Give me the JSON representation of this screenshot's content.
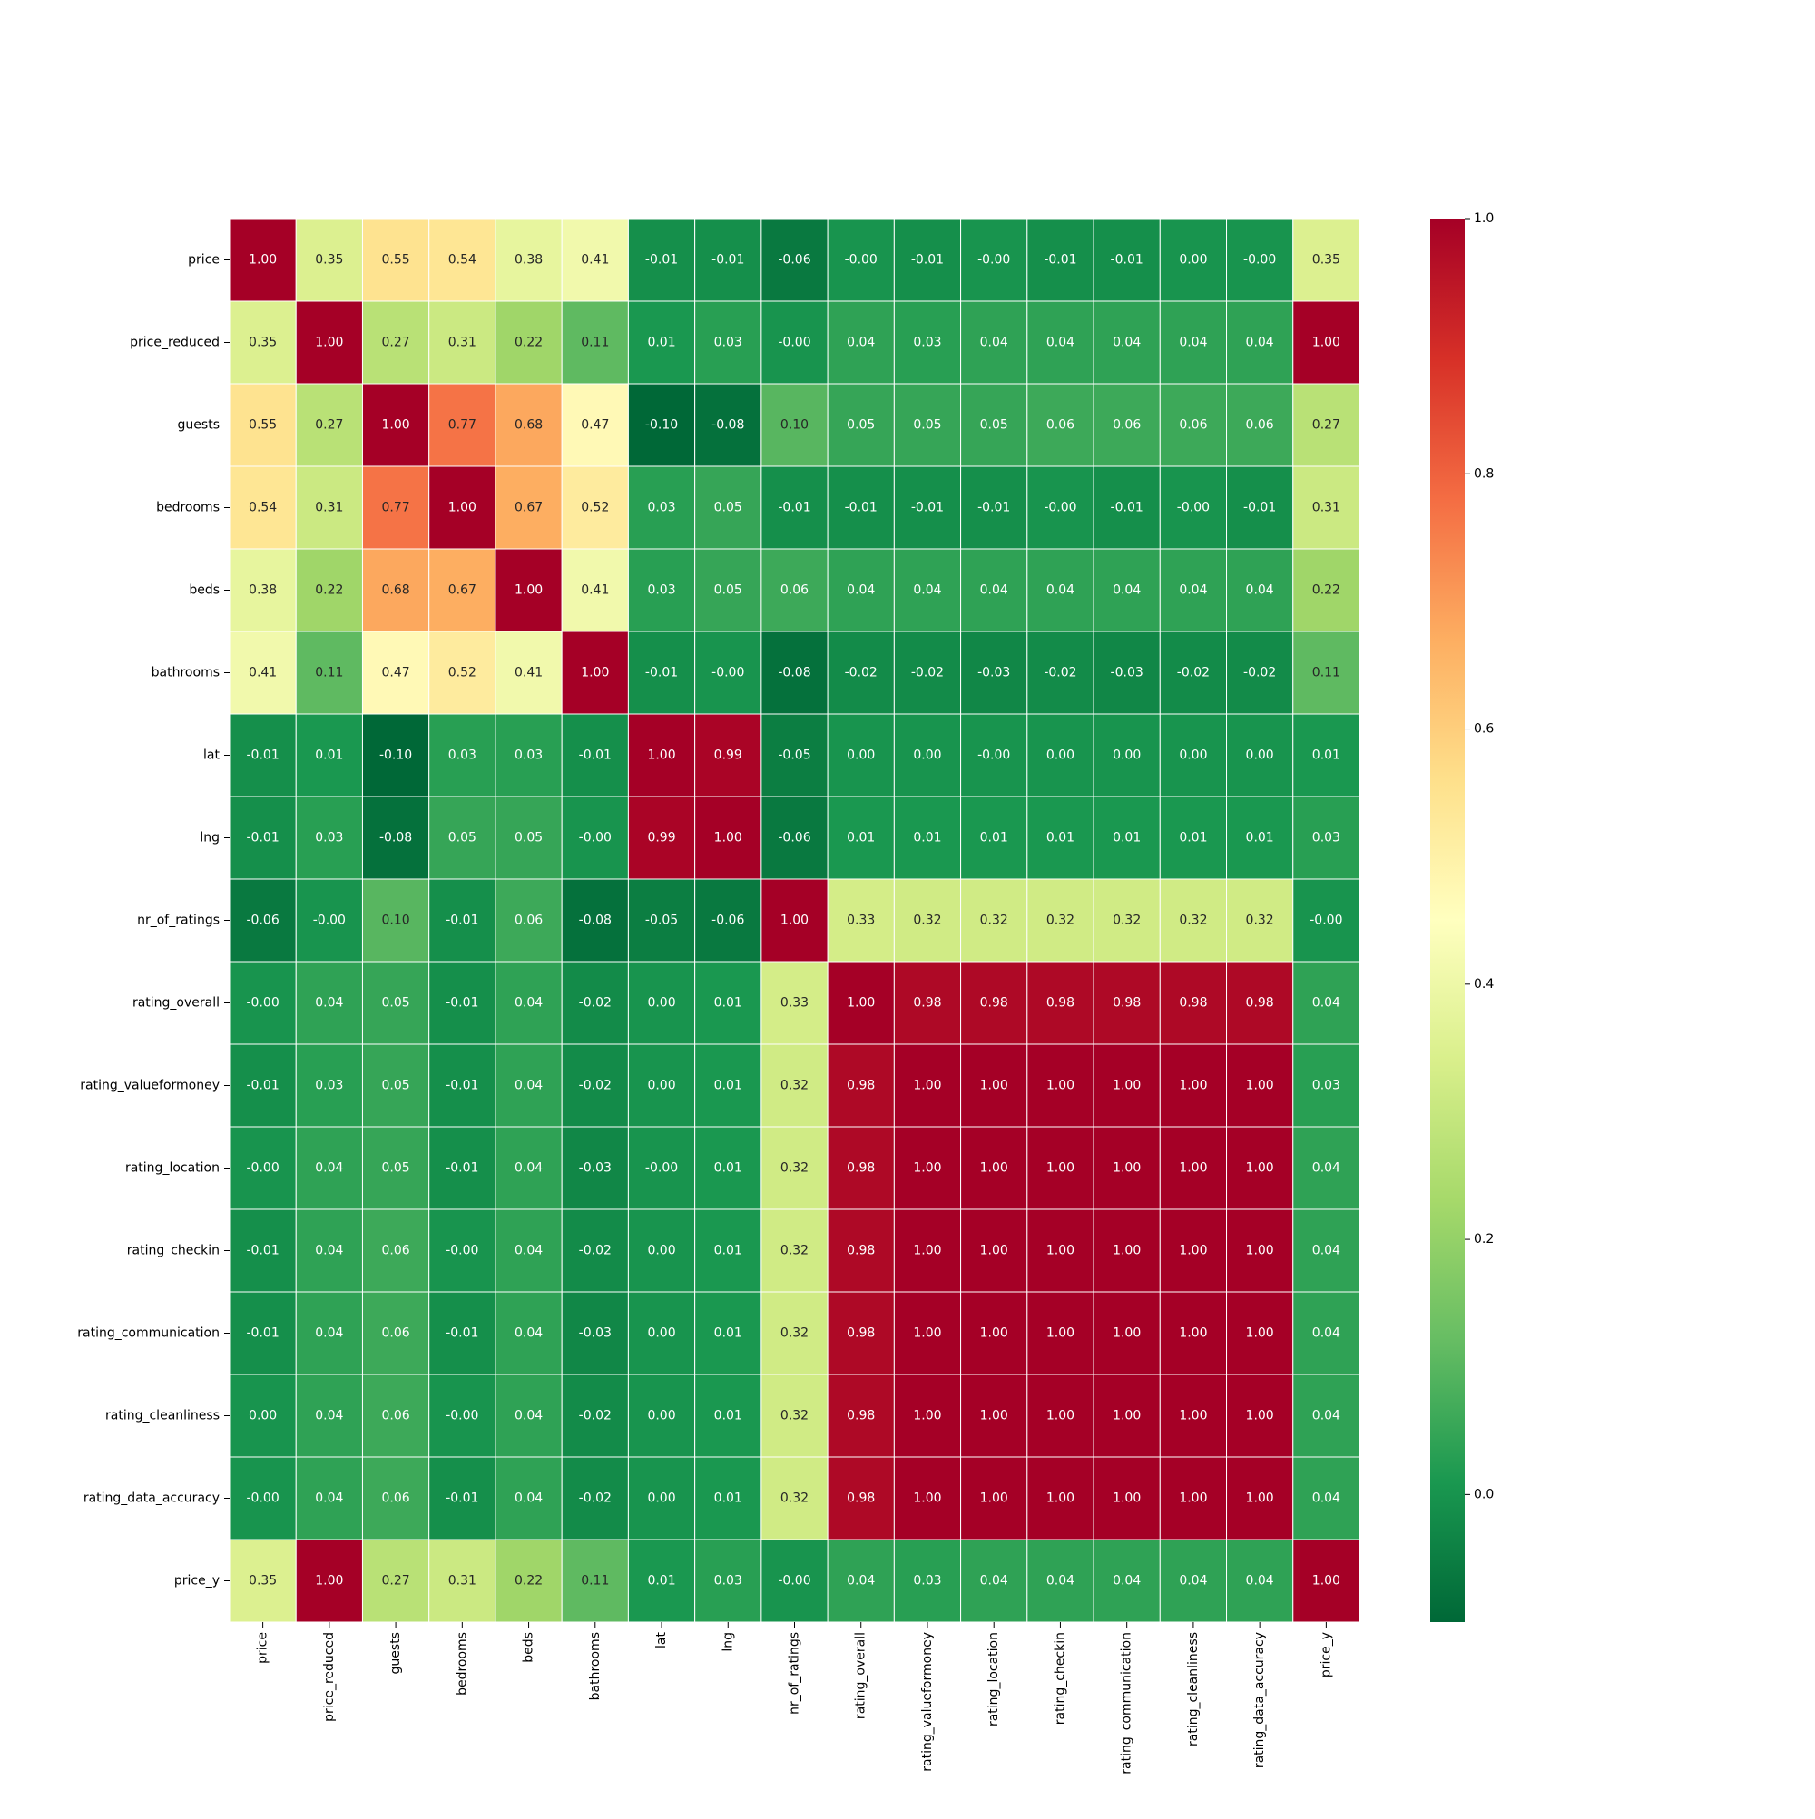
{
  "chart_data": {
    "type": "heatmap",
    "title": "",
    "xlabel": "",
    "ylabel": "",
    "variables": [
      "price",
      "price_reduced",
      "guests",
      "bedrooms",
      "beds",
      "bathrooms",
      "lat",
      "lng",
      "nr_of_ratings",
      "rating_overall",
      "rating_valueformoney",
      "rating_location",
      "rating_checkin",
      "rating_communication",
      "rating_cleanliness",
      "rating_data_accuracy",
      "price_y"
    ],
    "annotation_format": "2 decimals",
    "colormap": "RdYlGn_r",
    "colormap_stops": [
      "#006837",
      "#1a9850",
      "#66bd63",
      "#a6d96a",
      "#d9ef8b",
      "#ffffbf",
      "#fee08b",
      "#fdae61",
      "#f46d43",
      "#d73027",
      "#a50026"
    ],
    "vmin": -0.1,
    "vmax": 1.0,
    "colorbar_ticks": [
      0.0,
      0.2,
      0.4,
      0.6,
      0.8,
      1.0
    ],
    "colorbar_tick_labels": [
      "0.0",
      "0.2",
      "0.4",
      "0.6",
      "0.8",
      "1.0"
    ],
    "matrix": [
      [
        1.0,
        0.35,
        0.55,
        0.54,
        0.38,
        0.41,
        -0.01,
        -0.01,
        -0.06,
        -0.0,
        -0.01,
        -0.0,
        -0.01,
        -0.01,
        0.0,
        -0.0,
        0.35
      ],
      [
        0.35,
        1.0,
        0.27,
        0.31,
        0.22,
        0.11,
        0.01,
        0.03,
        -0.0,
        0.04,
        0.03,
        0.04,
        0.04,
        0.04,
        0.04,
        0.04,
        1.0
      ],
      [
        0.55,
        0.27,
        1.0,
        0.77,
        0.68,
        0.47,
        -0.1,
        -0.08,
        0.1,
        0.05,
        0.05,
        0.05,
        0.06,
        0.06,
        0.06,
        0.06,
        0.27
      ],
      [
        0.54,
        0.31,
        0.77,
        1.0,
        0.67,
        0.52,
        0.03,
        0.05,
        -0.01,
        -0.01,
        -0.01,
        -0.01,
        -0.0,
        -0.01,
        -0.0,
        -0.01,
        0.31
      ],
      [
        0.38,
        0.22,
        0.68,
        0.67,
        1.0,
        0.41,
        0.03,
        0.05,
        0.06,
        0.04,
        0.04,
        0.04,
        0.04,
        0.04,
        0.04,
        0.04,
        0.22
      ],
      [
        0.41,
        0.11,
        0.47,
        0.52,
        0.41,
        1.0,
        -0.01,
        -0.0,
        -0.08,
        -0.02,
        -0.02,
        -0.03,
        -0.02,
        -0.03,
        -0.02,
        -0.02,
        0.11
      ],
      [
        -0.01,
        0.01,
        -0.1,
        0.03,
        0.03,
        -0.01,
        1.0,
        0.99,
        -0.05,
        0.0,
        0.0,
        -0.0,
        0.0,
        0.0,
        0.0,
        0.0,
        0.01
      ],
      [
        -0.01,
        0.03,
        -0.08,
        0.05,
        0.05,
        -0.0,
        0.99,
        1.0,
        -0.06,
        0.01,
        0.01,
        0.01,
        0.01,
        0.01,
        0.01,
        0.01,
        0.03
      ],
      [
        -0.06,
        -0.0,
        0.1,
        -0.01,
        0.06,
        -0.08,
        -0.05,
        -0.06,
        1.0,
        0.33,
        0.32,
        0.32,
        0.32,
        0.32,
        0.32,
        0.32,
        -0.0
      ],
      [
        -0.0,
        0.04,
        0.05,
        -0.01,
        0.04,
        -0.02,
        0.0,
        0.01,
        0.33,
        1.0,
        0.98,
        0.98,
        0.98,
        0.98,
        0.98,
        0.98,
        0.04
      ],
      [
        -0.01,
        0.03,
        0.05,
        -0.01,
        0.04,
        -0.02,
        0.0,
        0.01,
        0.32,
        0.98,
        1.0,
        1.0,
        1.0,
        1.0,
        1.0,
        1.0,
        0.03
      ],
      [
        -0.0,
        0.04,
        0.05,
        -0.01,
        0.04,
        -0.03,
        -0.0,
        0.01,
        0.32,
        0.98,
        1.0,
        1.0,
        1.0,
        1.0,
        1.0,
        1.0,
        0.04
      ],
      [
        -0.01,
        0.04,
        0.06,
        -0.0,
        0.04,
        -0.02,
        0.0,
        0.01,
        0.32,
        0.98,
        1.0,
        1.0,
        1.0,
        1.0,
        1.0,
        1.0,
        0.04
      ],
      [
        -0.01,
        0.04,
        0.06,
        -0.01,
        0.04,
        -0.03,
        0.0,
        0.01,
        0.32,
        0.98,
        1.0,
        1.0,
        1.0,
        1.0,
        1.0,
        1.0,
        0.04
      ],
      [
        0.0,
        0.04,
        0.06,
        -0.0,
        0.04,
        -0.02,
        0.0,
        0.01,
        0.32,
        0.98,
        1.0,
        1.0,
        1.0,
        1.0,
        1.0,
        1.0,
        0.04
      ],
      [
        -0.0,
        0.04,
        0.06,
        -0.01,
        0.04,
        -0.02,
        0.0,
        0.01,
        0.32,
        0.98,
        1.0,
        1.0,
        1.0,
        1.0,
        1.0,
        1.0,
        0.04
      ],
      [
        0.35,
        1.0,
        0.27,
        0.31,
        0.22,
        0.11,
        0.01,
        0.03,
        -0.0,
        0.04,
        0.03,
        0.04,
        0.04,
        0.04,
        0.04,
        0.04,
        1.0
      ]
    ]
  }
}
